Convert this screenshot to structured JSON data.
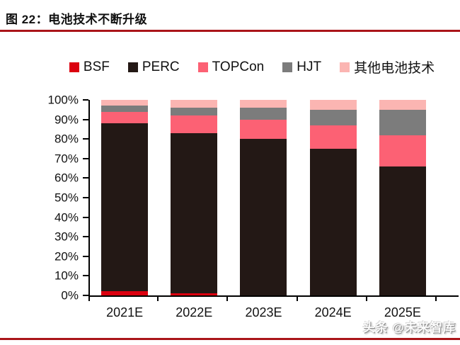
{
  "header": {
    "title": "图 22：电池技术不断升级"
  },
  "colors": {
    "rule": "#AA1519",
    "axis": "#000000"
  },
  "chart_data": {
    "type": "bar",
    "stacked": true,
    "unit": "%",
    "title": "电池技术不断升级",
    "categories": [
      "2021E",
      "2022E",
      "2023E",
      "2024E",
      "2025E"
    ],
    "series": [
      {
        "name": "BSF",
        "color": "#DB000F",
        "values": [
          2,
          1,
          0,
          0,
          0
        ]
      },
      {
        "name": "PERC",
        "color": "#231815",
        "values": [
          86,
          82,
          80,
          75,
          66
        ]
      },
      {
        "name": "TOPCon",
        "color": "#FC6174",
        "values": [
          6,
          9,
          10,
          12,
          16
        ]
      },
      {
        "name": "HJT",
        "color": "#7C7C7C",
        "values": [
          3,
          4,
          6,
          8,
          13
        ]
      },
      {
        "name": "其他电池技术",
        "color": "#FBB5B2",
        "values": [
          3,
          4,
          4,
          5,
          5
        ]
      }
    ],
    "xlabel": "",
    "ylabel": "",
    "ylim": [
      0,
      100
    ],
    "y_ticks": [
      "0%",
      "10%",
      "20%",
      "30%",
      "40%",
      "50%",
      "60%",
      "70%",
      "80%",
      "90%",
      "100%"
    ],
    "legend_position": "top",
    "grid": false
  },
  "footer": {
    "watermark": "头条 @未来智库"
  }
}
